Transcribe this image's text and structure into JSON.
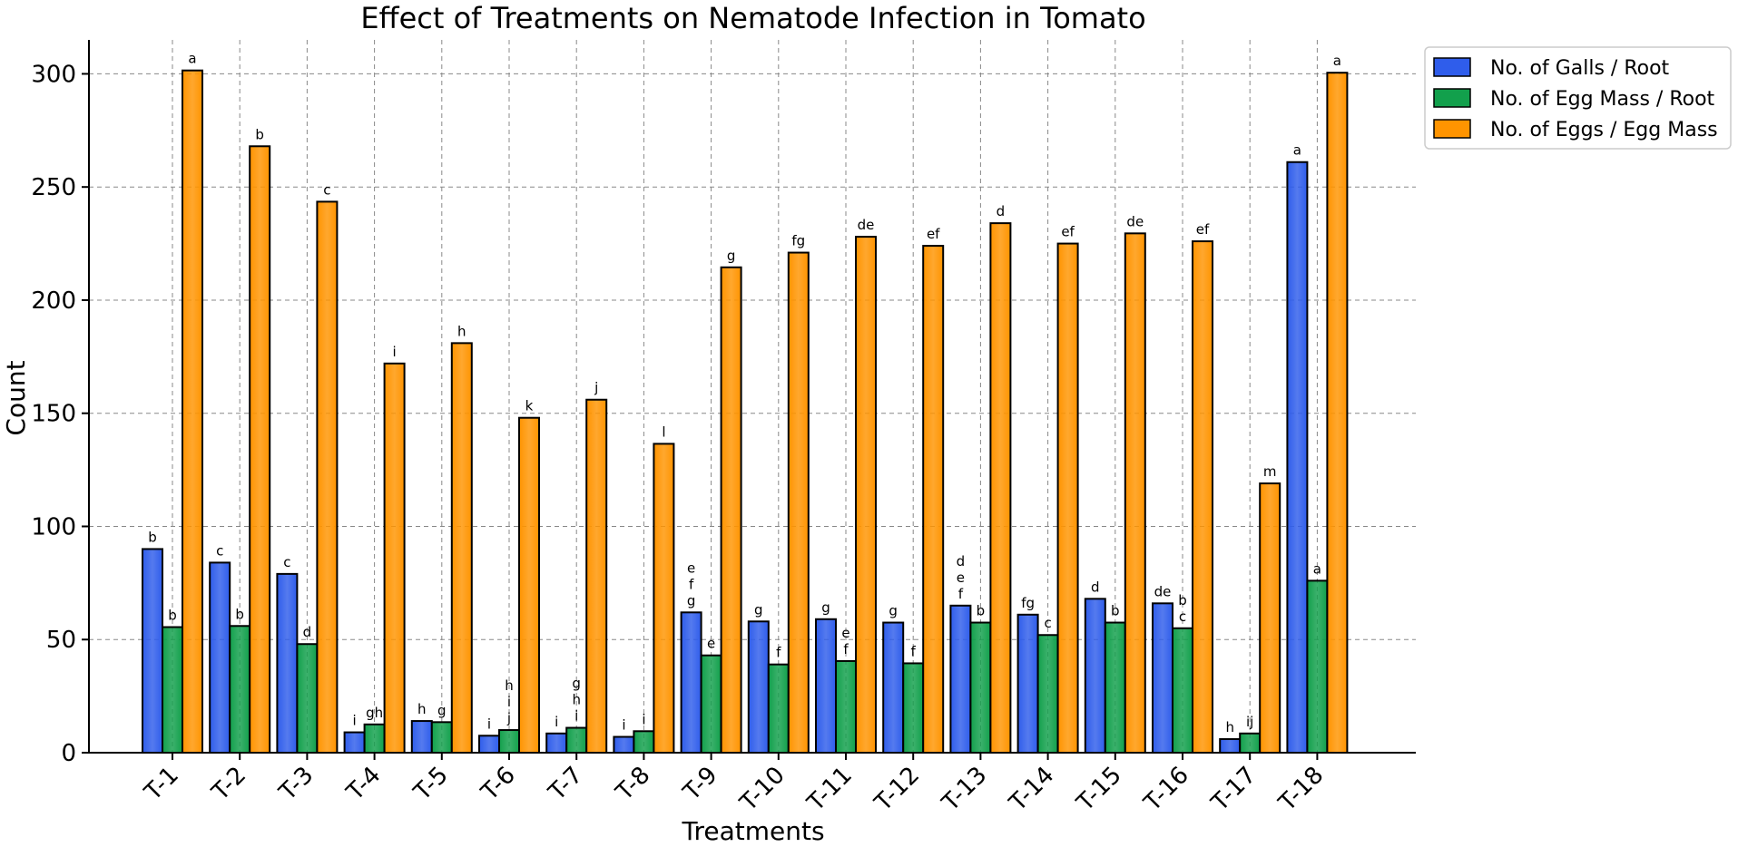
{
  "chart_data": {
    "type": "bar",
    "title": "Effect of Treatments on Nematode Infection in Tomato",
    "xlabel": "Treatments",
    "ylabel": "Count",
    "ylim": [
      0,
      315
    ],
    "yticks": [
      0,
      50,
      100,
      150,
      200,
      250,
      300
    ],
    "grid": true,
    "legend_position": "top-right (outside plot)",
    "categories": [
      "T-1",
      "T-2",
      "T-3",
      "T-4",
      "T-5",
      "T-6",
      "T-7",
      "T-8",
      "T-9",
      "T-10",
      "T-11",
      "T-12",
      "T-13",
      "T-14",
      "T-15",
      "T-16",
      "T-17",
      "T-18"
    ],
    "series": [
      {
        "name": "No. of Galls / Root",
        "color": "#2F5DEB",
        "values": [
          90,
          84,
          79,
          9,
          14,
          7.5,
          8.5,
          7,
          62,
          58,
          59,
          57.5,
          65,
          61,
          68,
          66,
          6,
          261
        ],
        "labels": [
          "b",
          "c",
          "c",
          "i",
          "h",
          "i",
          "i",
          "i",
          "e\nf\ng",
          "g",
          "g",
          "g",
          "d\ne\nf",
          "fg",
          "d",
          "de",
          "h",
          "a"
        ]
      },
      {
        "name": "No. of Egg Mass / Root",
        "color": "#12A04C",
        "values": [
          55.5,
          56,
          48,
          12.5,
          13.5,
          10,
          11,
          9.5,
          43,
          39,
          40.5,
          39.5,
          57.5,
          52,
          57.5,
          55,
          8.5,
          76
        ],
        "labels": [
          "b",
          "b",
          "d",
          "gh",
          "g",
          "h\ni\nj",
          "g\nh\ni",
          "i",
          "e",
          "f",
          "e\nf",
          "f",
          "b",
          "c",
          "b",
          "b\nc",
          "ij",
          "a"
        ]
      },
      {
        "name": "No. of Eggs / Egg Mass",
        "color": "#FF9400",
        "values": [
          301.5,
          268,
          243.5,
          172,
          181,
          148,
          156,
          136.5,
          214.5,
          221,
          228,
          224,
          234,
          225,
          229.5,
          226,
          119,
          300.5
        ],
        "labels": [
          "a",
          "b",
          "c",
          "i",
          "h",
          "k",
          "j",
          "l",
          "g",
          "fg",
          "de",
          "ef",
          "d",
          "ef",
          "de",
          "ef",
          "m",
          "a"
        ]
      }
    ]
  }
}
